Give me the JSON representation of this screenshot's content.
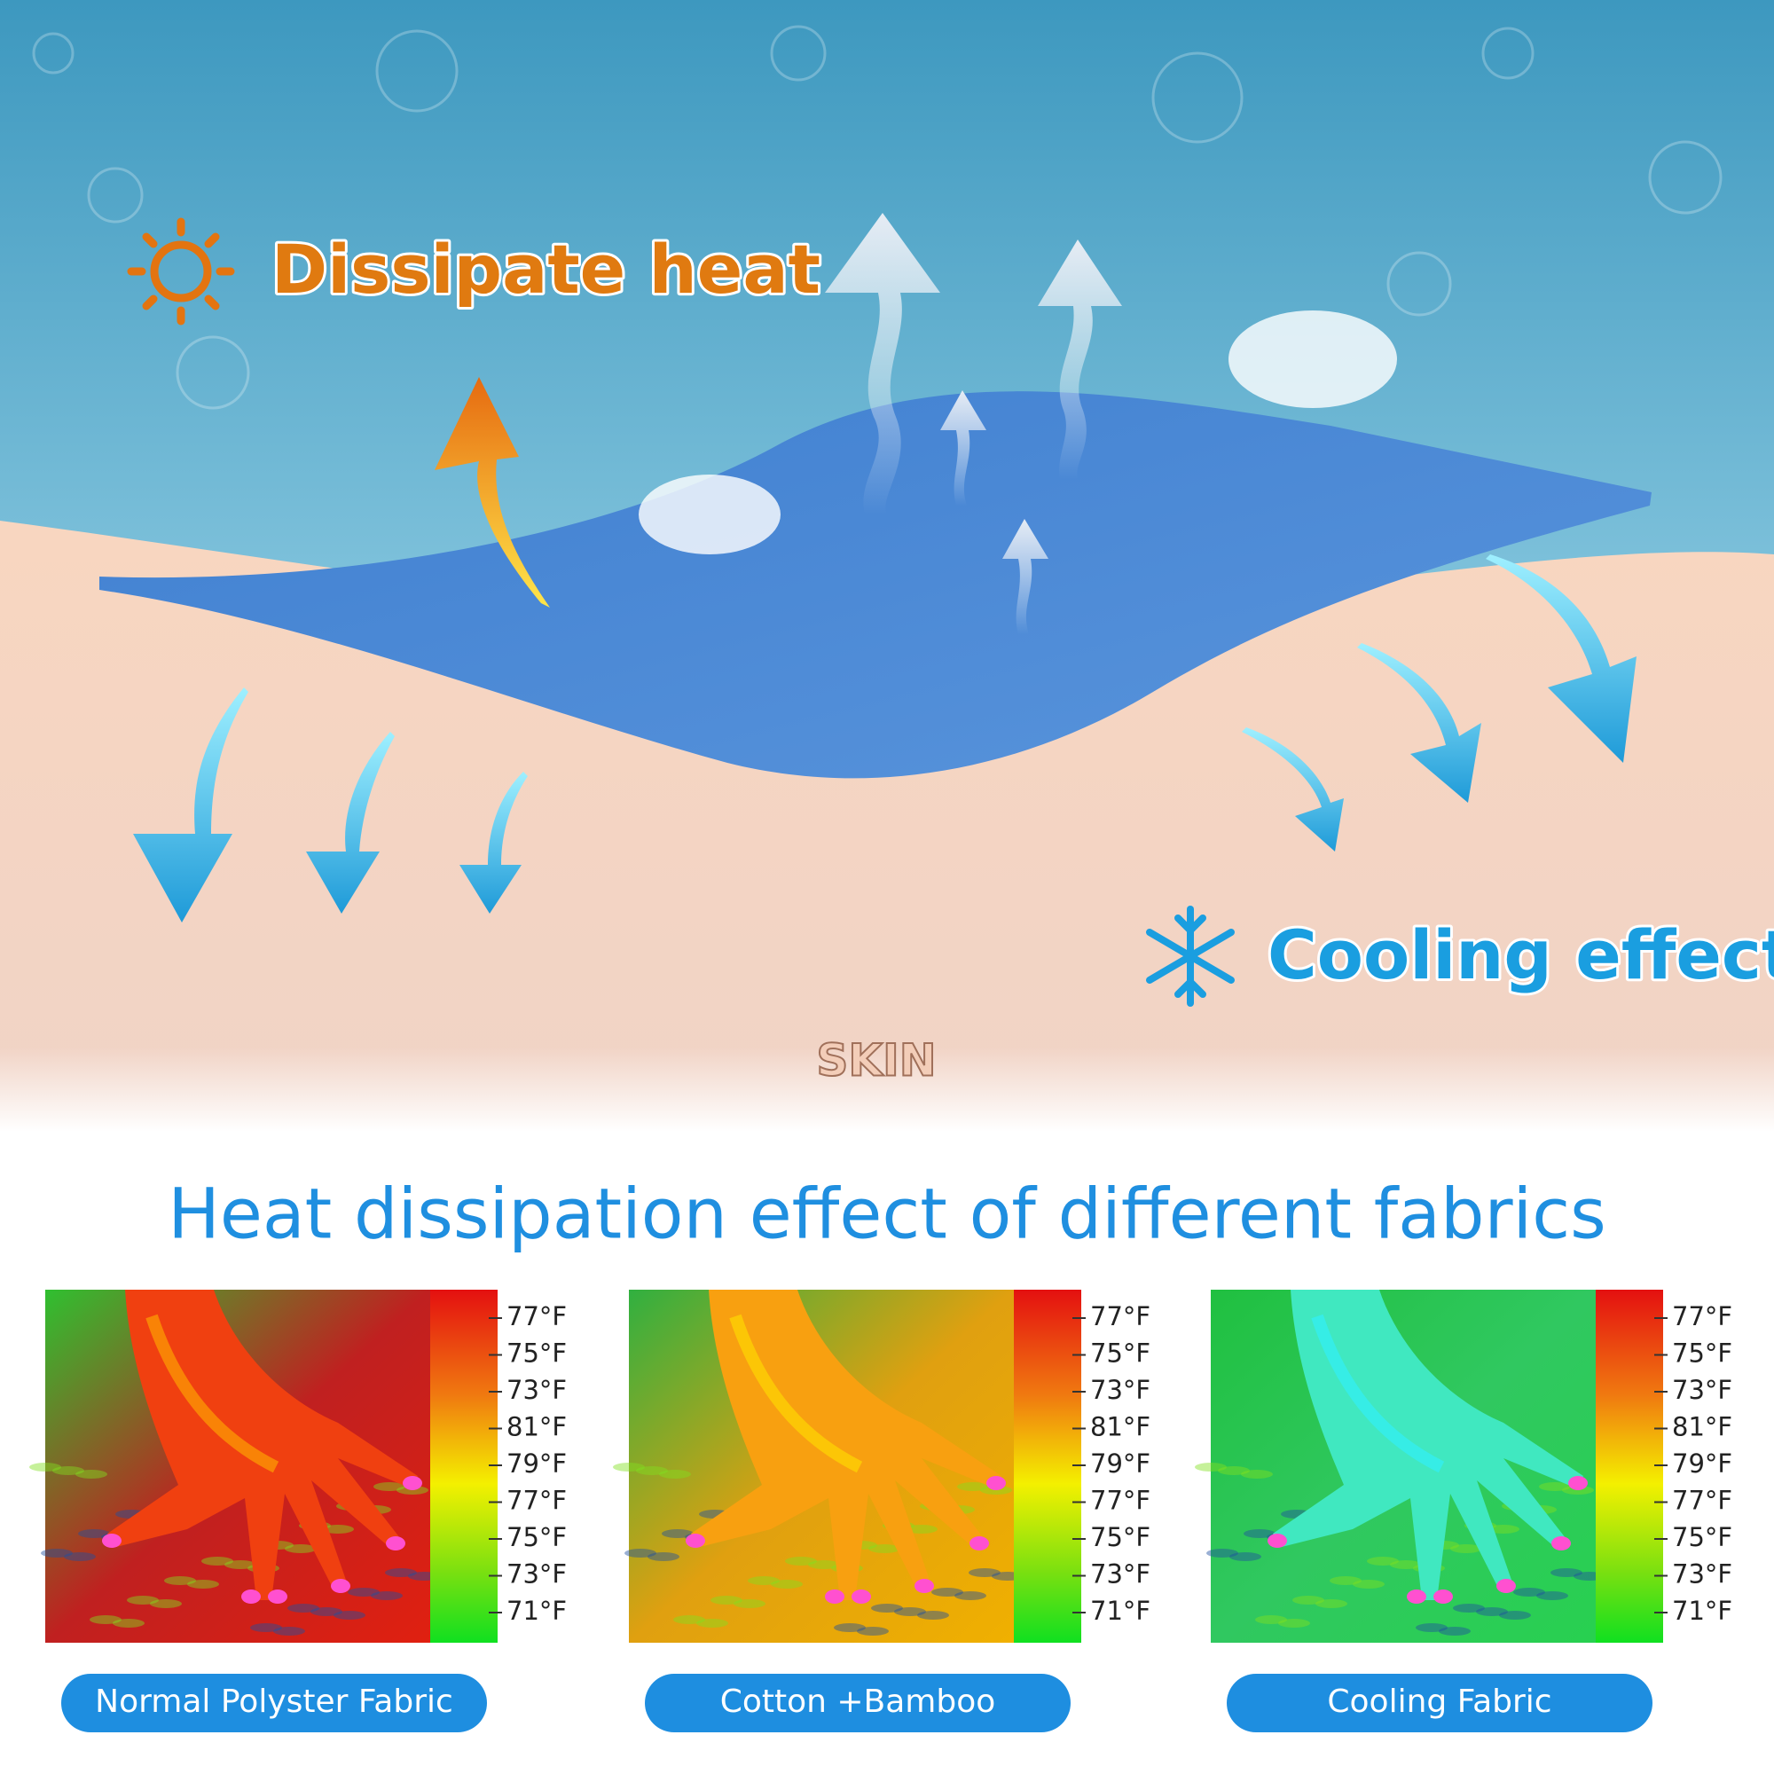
{
  "top": {
    "dissipate": "Dissipate heat",
    "cooling": "Cooling effect",
    "skin": "SKIN"
  },
  "section": {
    "title": "Heat dissipation effect of different fabrics",
    "panels": [
      {
        "scale": [
          "77°F",
          "75°F",
          "73°F",
          "81°F",
          "79°F",
          "77°F",
          "75°F",
          "73°F",
          "71°F"
        ],
        "caption": "Normal Polyster Fabric"
      },
      {
        "scale": [
          "77°F",
          "75°F",
          "73°F",
          "81°F",
          "79°F",
          "77°F",
          "75°F",
          "73°F",
          "71°F"
        ],
        "caption": "Cotton +Bamboo"
      },
      {
        "scale": [
          "77°F",
          "75°F",
          "73°F",
          "81°F",
          "79°F",
          "77°F",
          "75°F",
          "73°F",
          "71°F"
        ],
        "caption": "Cooling Fabric"
      }
    ]
  }
}
